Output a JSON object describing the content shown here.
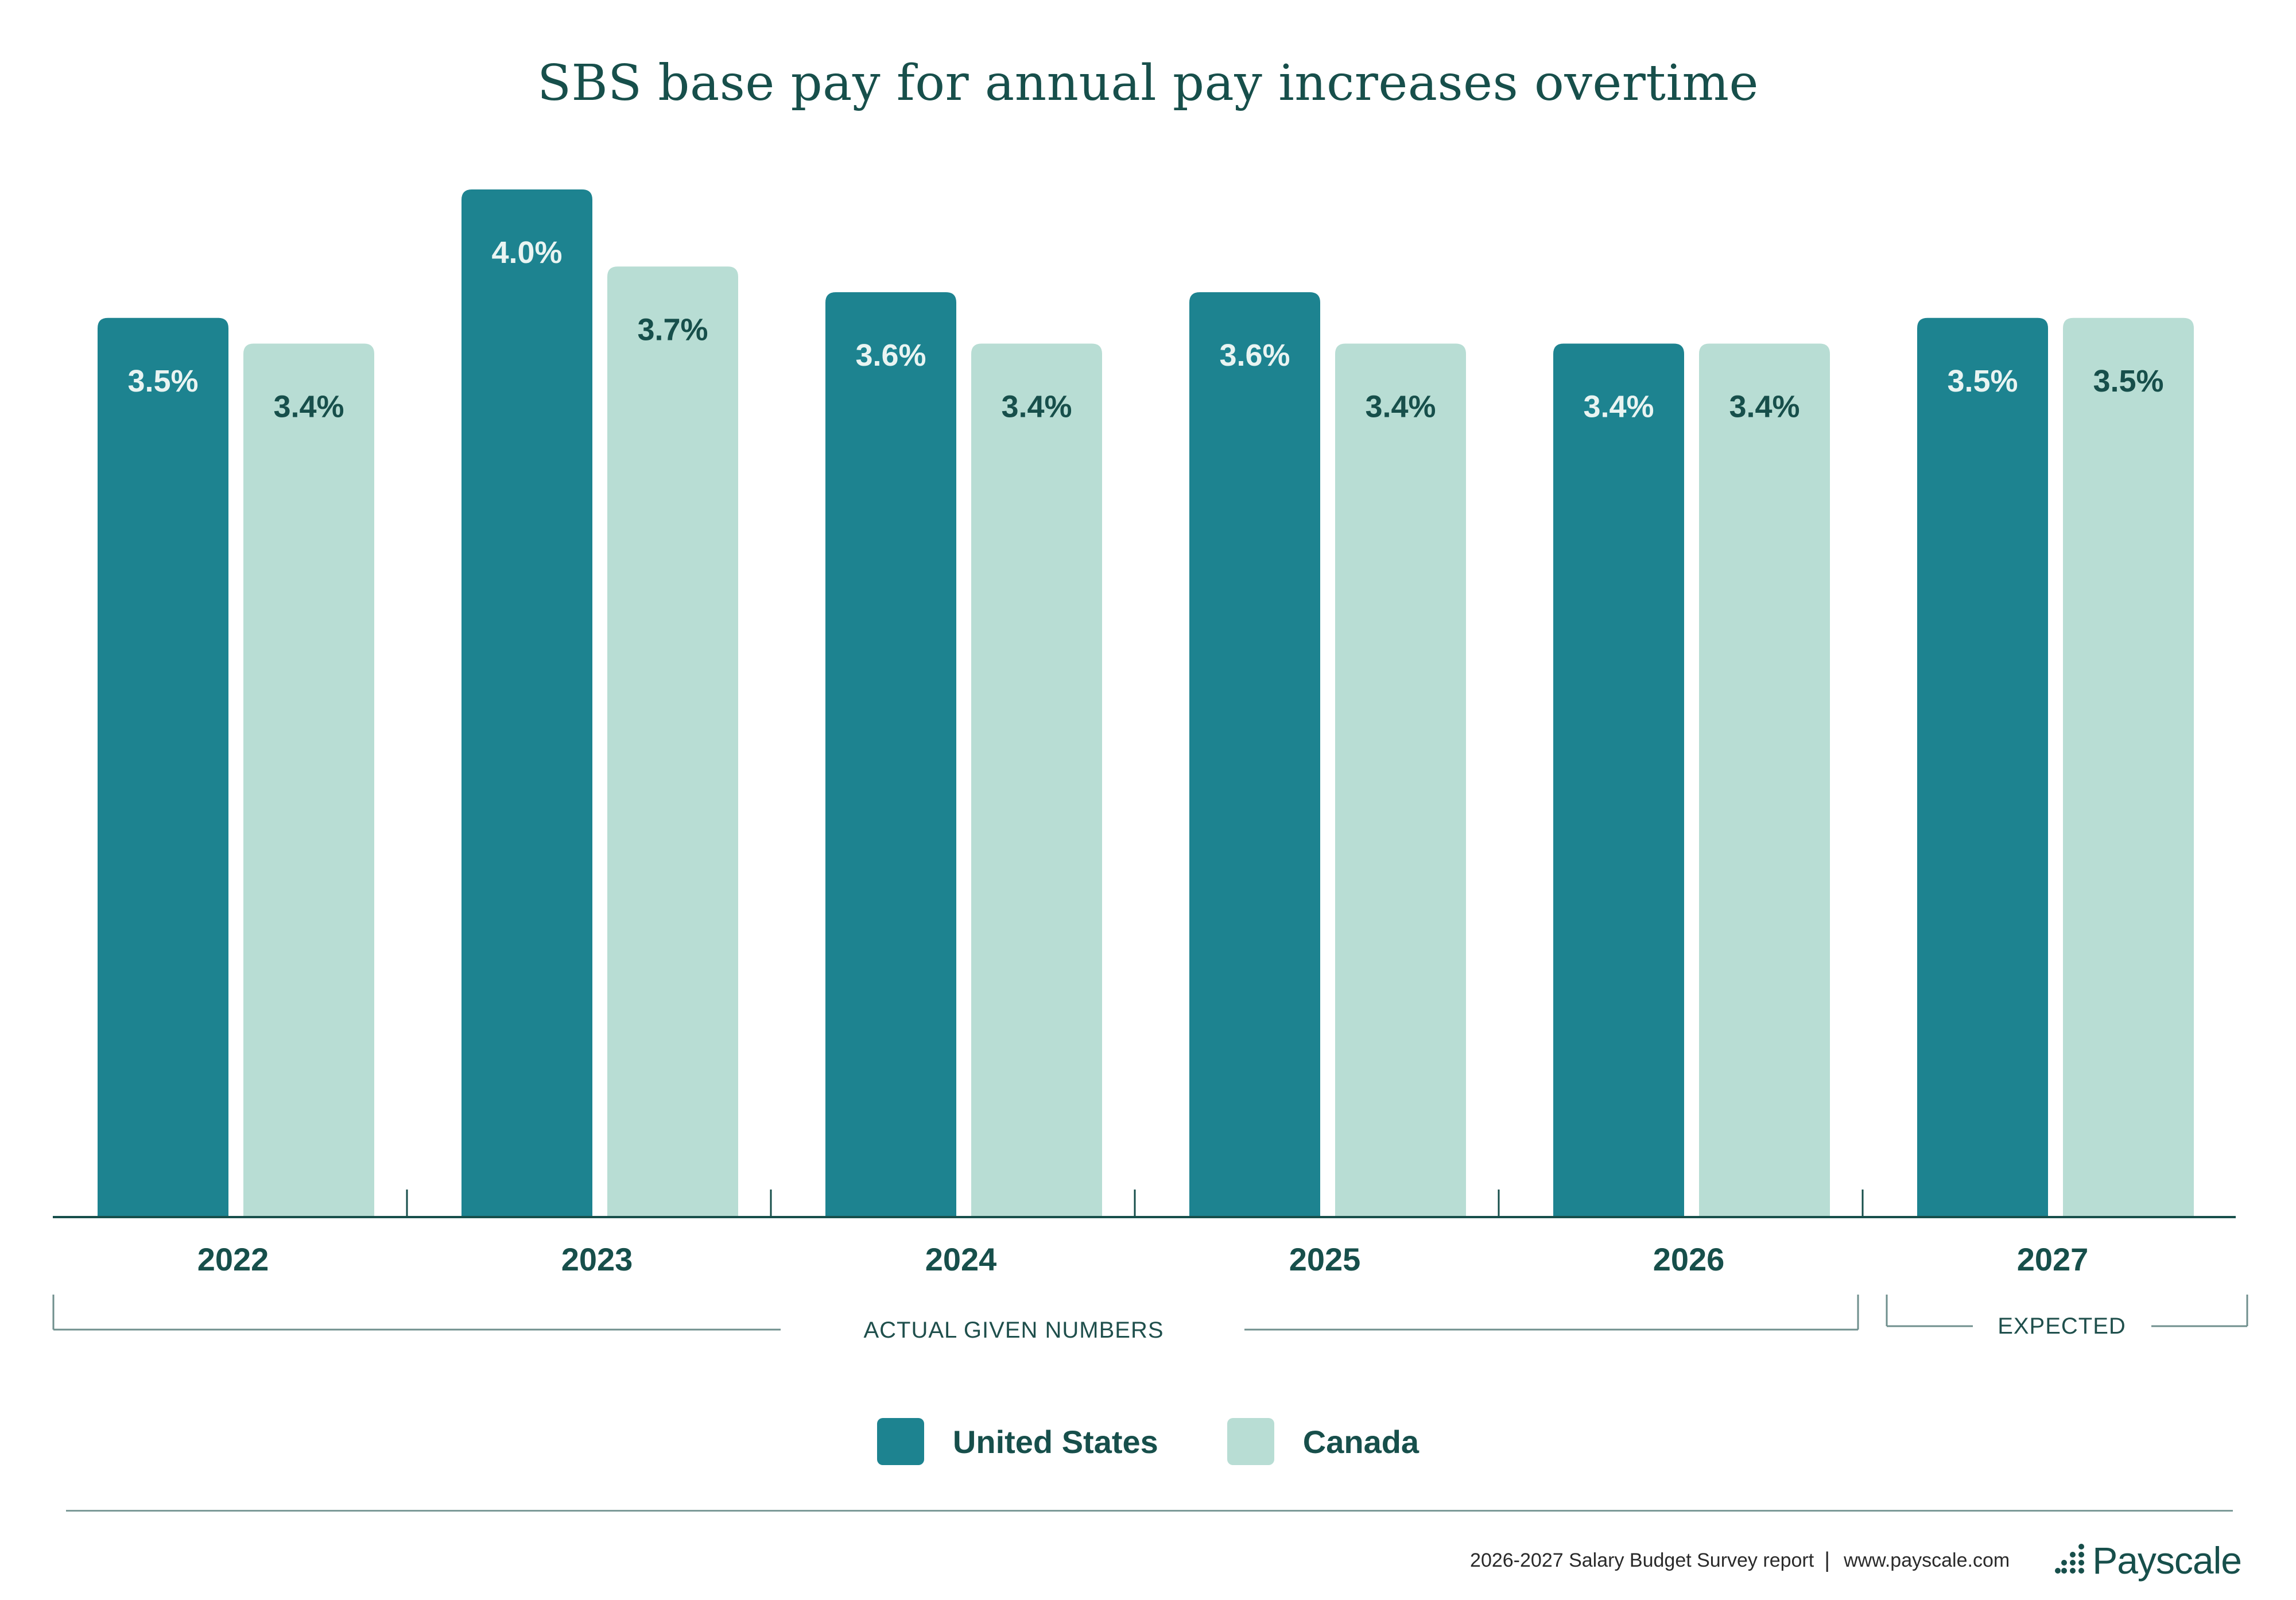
{
  "title": "SBS base pay for annual pay increases overtime",
  "colors": {
    "united_states": "#1d8390",
    "canada": "#b8ddd4",
    "text_dark": "#174f4b",
    "label_on_dark": "#e9f4f2",
    "axis": "#174f4b"
  },
  "chart_data": {
    "type": "bar",
    "categories": [
      "2022",
      "2023",
      "2024",
      "2025",
      "2026",
      "2027"
    ],
    "series": [
      {
        "name": "United States",
        "values": [
          3.5,
          4.0,
          3.6,
          3.6,
          3.4,
          3.5
        ],
        "labels": [
          "3.5%",
          "4.0%",
          "3.6%",
          "3.6%",
          "3.4%",
          "3.5%"
        ]
      },
      {
        "name": "Canada",
        "values": [
          3.4,
          3.7,
          3.4,
          3.4,
          3.4,
          3.5
        ],
        "labels": [
          "3.4%",
          "3.7%",
          "3.4%",
          "3.4%",
          "3.4%",
          "3.5%"
        ]
      }
    ],
    "ylim": [
      0,
      4.0
    ],
    "grid": false,
    "legend_position": "bottom-center",
    "groups": [
      {
        "label": "ACTUAL GIVEN NUMBERS",
        "categories": [
          "2022",
          "2023",
          "2024",
          "2025",
          "2026"
        ]
      },
      {
        "label": "EXPECTED",
        "categories": [
          "2027"
        ]
      }
    ]
  },
  "legend": {
    "items": [
      {
        "label": "United States"
      },
      {
        "label": "Canada"
      }
    ]
  },
  "footer": {
    "report": "2026-2027 Salary Budget Survey report",
    "separator": "|",
    "url": "www.payscale.com",
    "logo_text": "Payscale"
  }
}
